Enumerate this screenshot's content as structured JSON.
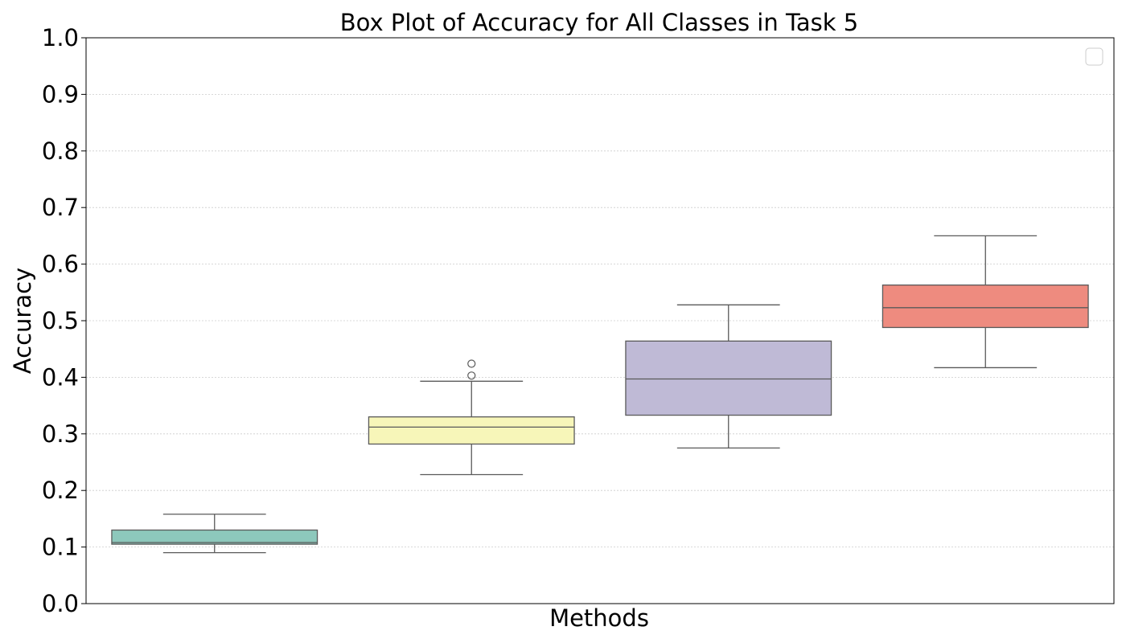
{
  "chart_data": {
    "type": "box",
    "title": "Box Plot of Accuracy for All Classes in Task 5",
    "xlabel": "Methods",
    "ylabel": "Accuracy",
    "ylim": [
      0.0,
      1.0
    ],
    "yticks": [
      "0.0",
      "0.1",
      "0.2",
      "0.3",
      "0.4",
      "0.5",
      "0.6",
      "0.7",
      "0.8",
      "0.9",
      "1.0"
    ],
    "grid": "horizontal dotted",
    "legend": "top-right (empty)",
    "boxes": [
      {
        "color": "#8dc8bc",
        "whisker_low": 0.09,
        "q1": 0.105,
        "median": 0.108,
        "q3": 0.13,
        "whisker_high": 0.158,
        "fliers": []
      },
      {
        "color": "#f7f6b9",
        "whisker_low": 0.228,
        "q1": 0.282,
        "median": 0.312,
        "q3": 0.33,
        "whisker_high": 0.393,
        "fliers": [
          0.403,
          0.424
        ]
      },
      {
        "color": "#bfbad6",
        "whisker_low": 0.275,
        "q1": 0.333,
        "median": 0.397,
        "q3": 0.464,
        "whisker_high": 0.528,
        "fliers": []
      },
      {
        "color": "#ee8b7f",
        "whisker_low": 0.417,
        "q1": 0.488,
        "median": 0.523,
        "q3": 0.563,
        "whisker_high": 0.65,
        "fliers": []
      }
    ]
  }
}
